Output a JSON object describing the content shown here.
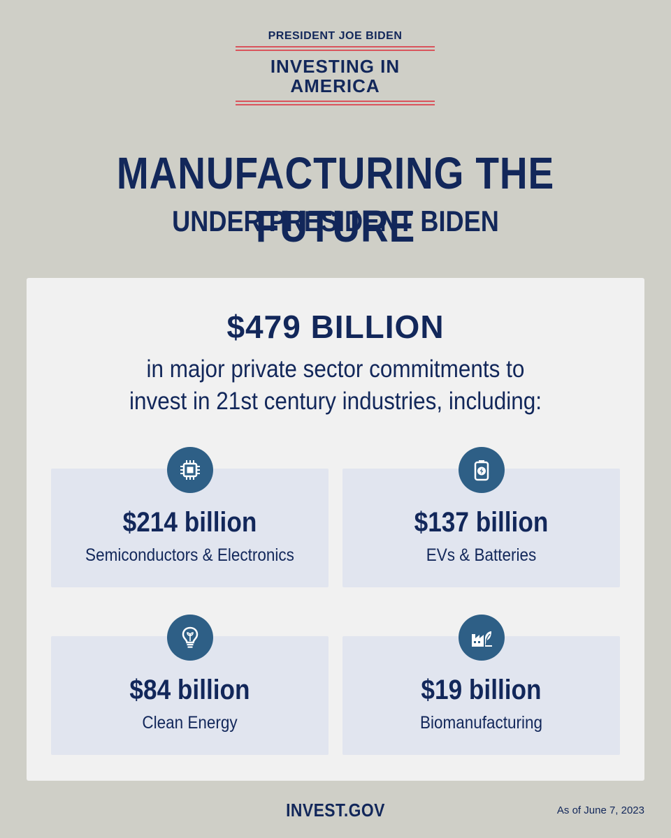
{
  "logo": {
    "top_line": "PRESIDENT JOE BIDEN",
    "main_line_1": "INVESTING IN",
    "main_line_2": "AMERICA"
  },
  "headline": "MANUFACTURING THE FUTURE",
  "subhead": "UNDER PRESIDENT BIDEN",
  "summary": {
    "total": "$479 BILLION",
    "line_1": "in major private sector commitments to",
    "line_2": "invest in 21st century industries, including:"
  },
  "cards": [
    {
      "amount": "$214 billion",
      "label": "Semiconductors & Electronics",
      "icon": "chip-icon"
    },
    {
      "amount": "$137 billion",
      "label": "EVs & Batteries",
      "icon": "battery-icon"
    },
    {
      "amount": "$84 billion",
      "label": "Clean Energy",
      "icon": "lightbulb-icon"
    },
    {
      "amount": "$19 billion",
      "label": "Biomanufacturing",
      "icon": "factory-leaf-icon"
    }
  ],
  "footer": {
    "site": "INVEST.GOV",
    "date": "As of June 7, 2023"
  },
  "colors": {
    "background": "#cfcfc7",
    "navy": "#12275a",
    "accent_red": "#d9545c",
    "panel": "#f1f1f1",
    "card": "#e1e5ef",
    "icon_circle": "#2e5f86"
  }
}
